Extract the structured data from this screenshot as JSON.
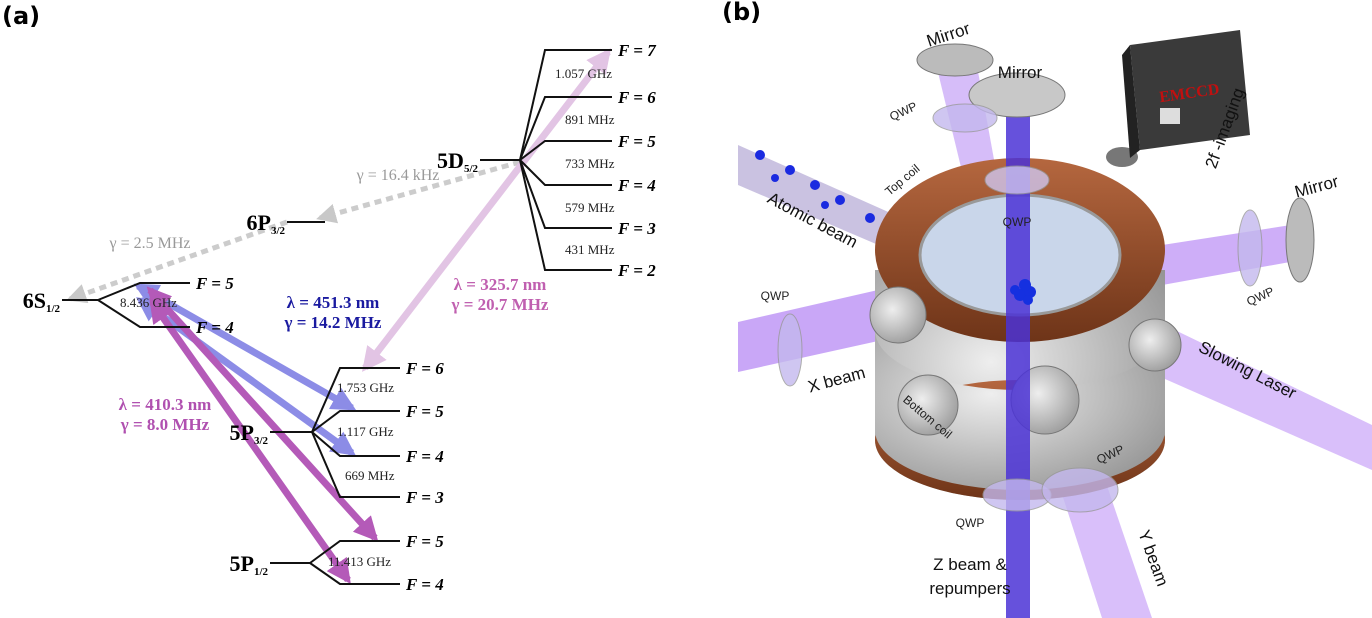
{
  "panel_a": {
    "label": "(a)",
    "levels": [
      {
        "name": "6S",
        "sub": "1/2",
        "sublevels": [
          "F = 5",
          "F = 4"
        ],
        "splittings": [
          "8.436 GHz"
        ]
      },
      {
        "name": "6P",
        "sub": "3/2"
      },
      {
        "name": "5D",
        "sub": "5/2",
        "sublevels": [
          "F = 7",
          "F = 6",
          "F = 5",
          "F = 4",
          "F = 3",
          "F = 2"
        ],
        "splittings": [
          "1.057 GHz",
          "891 MHz",
          "733 MHz",
          "579 MHz",
          "431 MHz"
        ]
      },
      {
        "name": "5P",
        "sub": "3/2",
        "sublevels": [
          "F = 6",
          "F = 5",
          "F = 4",
          "F = 3"
        ],
        "splittings": [
          "1.753 GHz",
          "1.117 GHz",
          "669 MHz"
        ]
      },
      {
        "name": "5P",
        "sub": "1/2",
        "sublevels": [
          "F = 5",
          "F = 4"
        ],
        "splittings": [
          "11.413 GHz"
        ]
      }
    ],
    "transitions": [
      {
        "wavelength": "λ = 451.3 nm",
        "linewidth": "γ = 14.2 MHz"
      },
      {
        "wavelength": "λ = 410.3 nm",
        "linewidth": "γ = 8.0 MHz"
      },
      {
        "wavelength": "λ = 325.7 nm",
        "linewidth": "γ = 20.7 MHz"
      }
    ],
    "decays": [
      "γ = 2.5 MHz",
      "γ = 16.4 kHz"
    ]
  },
  "panel_b": {
    "label": "(b)",
    "labels": [
      "Mirror",
      "Mirror",
      "EMCCD",
      "2f -imaging",
      "QWP",
      "QWP",
      "Top coil",
      "Atomic beam",
      "Mirror",
      "QWP",
      "QWP",
      "X beam",
      "Slowing Laser",
      "Bottom coil",
      "QWP",
      "QWP",
      "Z beam &",
      "repumpers",
      "Y beam"
    ]
  }
}
